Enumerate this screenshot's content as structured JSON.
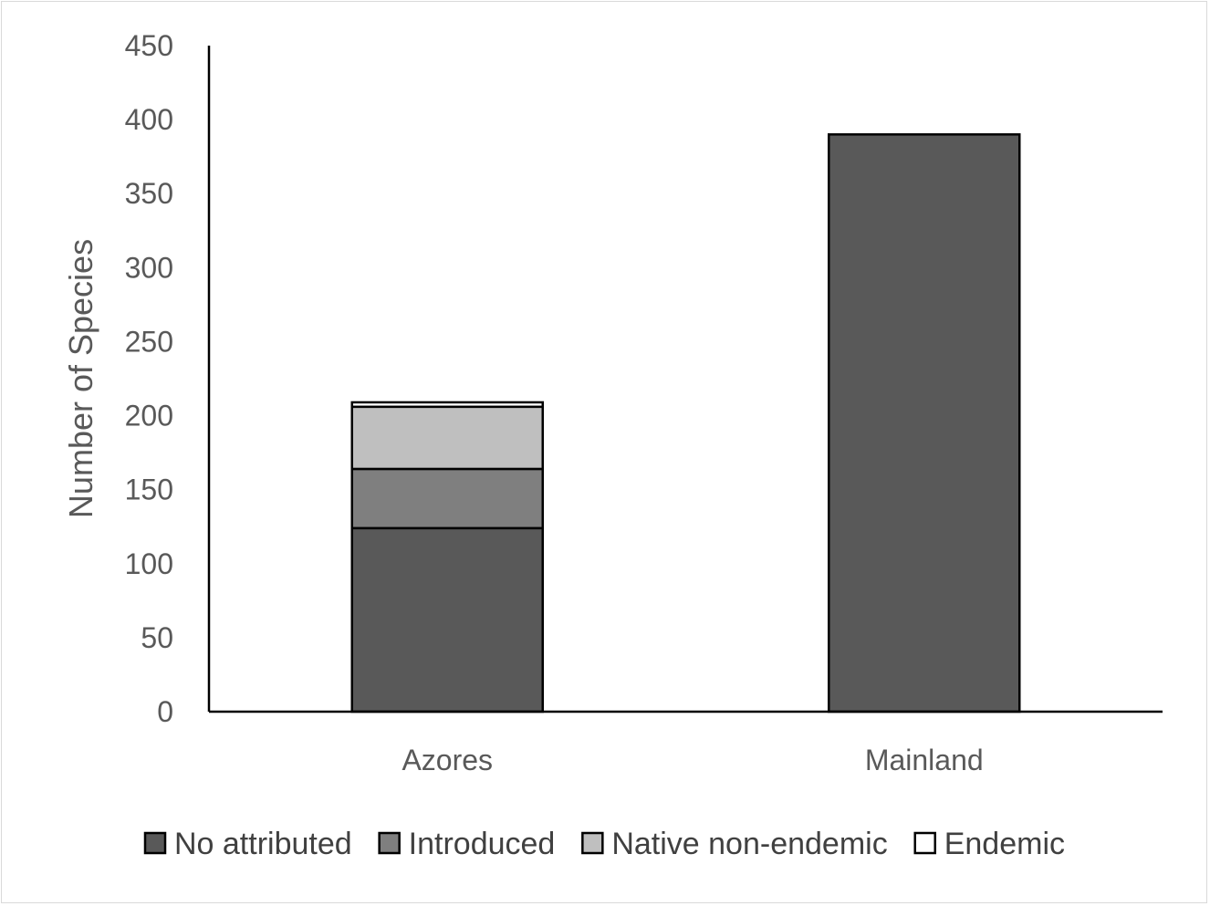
{
  "chart_data": {
    "type": "bar",
    "stacked": true,
    "categories": [
      "Azores",
      "Mainland"
    ],
    "series": [
      {
        "name": "No attributed",
        "values": [
          124,
          390
        ],
        "color": "#595959"
      },
      {
        "name": "Introduced",
        "values": [
          40,
          0
        ],
        "color": "#7f7f7f"
      },
      {
        "name": "Native non-endemic",
        "values": [
          42,
          0
        ],
        "color": "#bfbfbf"
      },
      {
        "name": "Endemic",
        "values": [
          3,
          0
        ],
        "color": "#ffffff"
      }
    ],
    "ylabel": "Number of Species",
    "xlabel": "",
    "title": "",
    "ylim": [
      0,
      450
    ],
    "yticks": [
      0,
      50,
      100,
      150,
      200,
      250,
      300,
      350,
      400,
      450
    ],
    "grid": false,
    "legend_position": "bottom"
  }
}
